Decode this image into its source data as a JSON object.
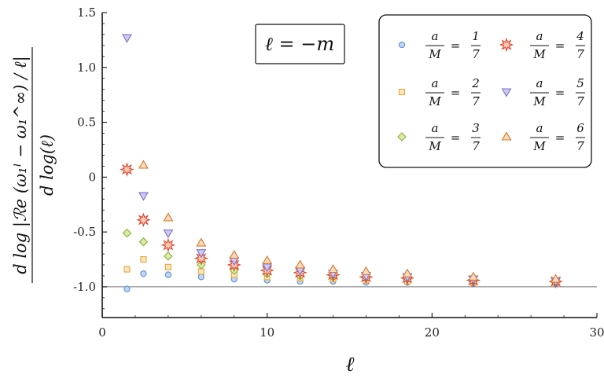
{
  "chart_data": {
    "type": "scatter",
    "xlabel": "ℓ",
    "ylabel_numerator": "d log |ℛe (ω₁ˡ − ω₁^∞) / ℓ|",
    "ylabel_denominator": "d log(ℓ)",
    "annotation": "ℓ = −m",
    "xlim": [
      0,
      30
    ],
    "ylim": [
      -1.28,
      1.5
    ],
    "x_ticks": [
      0,
      10,
      20,
      30
    ],
    "x_tick_labels": [
      "0",
      "10",
      "20",
      "30"
    ],
    "y_ticks": [
      1.5,
      1.0,
      0.5,
      0,
      -0.5,
      -1.0
    ],
    "y_tick_labels": [
      "1.5",
      "1.0",
      "0.5",
      "0",
      "-0.5",
      "-1.0"
    ],
    "reference_line_y": -1.0,
    "legend_position": "top-right",
    "series": [
      {
        "name": "a/M = 1/7",
        "frac": [
          "a",
          "M",
          "1",
          "7"
        ],
        "marker": "circle",
        "color": "#5b8fd6",
        "fill": "#c3d6f0",
        "x": [
          1.5,
          2.5,
          4,
          6,
          8,
          10,
          12,
          14,
          16,
          18.5,
          22.5,
          27.5
        ],
        "y": [
          -1.02,
          -0.88,
          -0.89,
          -0.91,
          -0.93,
          -0.94,
          -0.95,
          -0.95,
          -0.96,
          -0.96,
          -0.97,
          -0.97
        ]
      },
      {
        "name": "a/M = 2/7",
        "frac": [
          "a",
          "M",
          "2",
          "7"
        ],
        "marker": "square",
        "color": "#e6a53a",
        "fill": "#fbe6c0",
        "x": [
          1.5,
          2.5,
          4,
          6,
          8,
          10,
          12,
          14,
          16,
          18.5,
          22.5,
          27.5
        ],
        "y": [
          -0.84,
          -0.75,
          -0.82,
          -0.86,
          -0.89,
          -0.91,
          -0.92,
          -0.93,
          -0.94,
          -0.95,
          -0.96,
          -0.96
        ]
      },
      {
        "name": "a/M = 3/7",
        "frac": [
          "a",
          "M",
          "3",
          "7"
        ],
        "marker": "diamond",
        "color": "#8ab32e",
        "fill": "#d9ebb0",
        "x": [
          1.5,
          2.5,
          4,
          6,
          8,
          10,
          12,
          14,
          16,
          18.5,
          22.5,
          27.5
        ],
        "y": [
          -0.51,
          -0.59,
          -0.72,
          -0.8,
          -0.85,
          -0.88,
          -0.9,
          -0.91,
          -0.92,
          -0.93,
          -0.95,
          -0.96
        ]
      },
      {
        "name": "a/M = 4/7",
        "frac": [
          "a",
          "M",
          "4",
          "7"
        ],
        "marker": "star",
        "color": "#e0452c",
        "fill": "#f9c9b8",
        "x": [
          1.5,
          2.5,
          4,
          6,
          8,
          10,
          12,
          14,
          16,
          18.5,
          22.5,
          27.5
        ],
        "y": [
          0.07,
          -0.39,
          -0.62,
          -0.74,
          -0.8,
          -0.85,
          -0.87,
          -0.89,
          -0.91,
          -0.92,
          -0.94,
          -0.95
        ]
      },
      {
        "name": "a/M = 5/7",
        "frac": [
          "a",
          "M",
          "5",
          "7"
        ],
        "marker": "triangle-down",
        "color": "#7a72c8",
        "fill": "#cfcaf0",
        "x": [
          1.5,
          2.5,
          4,
          6,
          8,
          10,
          12,
          14,
          16,
          18.5,
          22.5,
          27.5
        ],
        "y": [
          1.27,
          -0.17,
          -0.51,
          -0.69,
          -0.76,
          -0.82,
          -0.85,
          -0.88,
          -0.9,
          -0.91,
          -0.93,
          -0.95
        ]
      },
      {
        "name": "a/M = 6/7",
        "frac": [
          "a",
          "M",
          "6",
          "7"
        ],
        "marker": "triangle-up",
        "color": "#d9772a",
        "fill": "#f8dcbf",
        "x": [
          1.5,
          2.5,
          4,
          6,
          8,
          10,
          12,
          14,
          16,
          18.5,
          22.5,
          27.5
        ],
        "y": [
          null,
          0.11,
          -0.37,
          -0.6,
          -0.71,
          -0.76,
          -0.8,
          -0.84,
          -0.86,
          -0.88,
          -0.91,
          -0.93
        ]
      }
    ]
  }
}
